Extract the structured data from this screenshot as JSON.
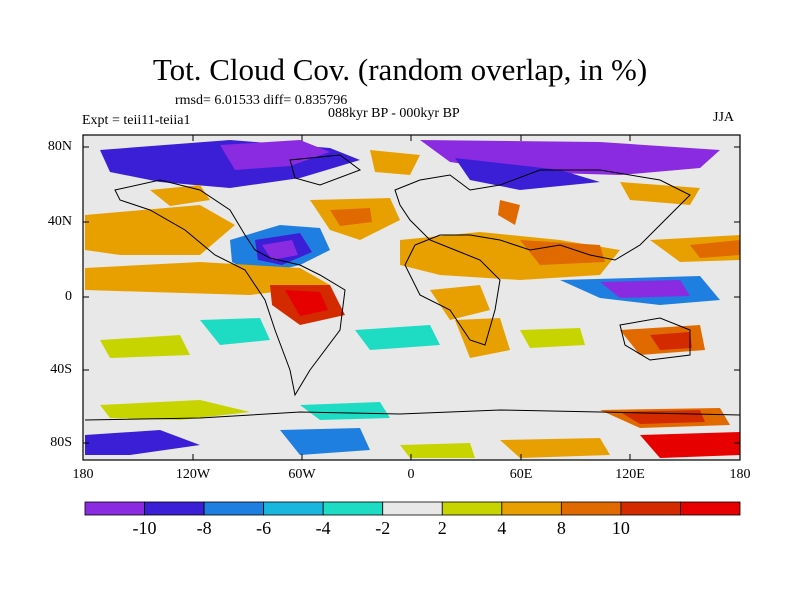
{
  "title": "Tot. Cloud Cov. (random overlap, in %)",
  "stats": "rmsd= 6.01533 diff= 0.835796",
  "experiment": "Expt = teii11-teiia1",
  "period": "088kyr BP - 000kyr BP",
  "season": "JJA",
  "axes": {
    "lat_labels": [
      "80N",
      "40N",
      "0",
      "40S",
      "80S"
    ],
    "lat_values": [
      80,
      40,
      0,
      -40,
      -80
    ],
    "lon_labels": [
      "180",
      "120W",
      "60W",
      "0",
      "60E",
      "120E",
      "180"
    ],
    "lon_values": [
      -180,
      -120,
      -60,
      0,
      60,
      120,
      180
    ],
    "lon_range": [
      -180,
      180
    ],
    "lat_range": [
      -90,
      90
    ]
  },
  "colorbar": {
    "labels": [
      "-10",
      "-8",
      "-6",
      "-4",
      "-2",
      "2",
      "4",
      "8",
      "10"
    ],
    "colors": [
      "#8a2be2",
      "#3a1fd6",
      "#1f7fe0",
      "#19b7e0",
      "#1edcc4",
      "#e8e8e8",
      "#c8d400",
      "#e8a000",
      "#e06a00",
      "#d42a00",
      "#e60000"
    ]
  }
}
